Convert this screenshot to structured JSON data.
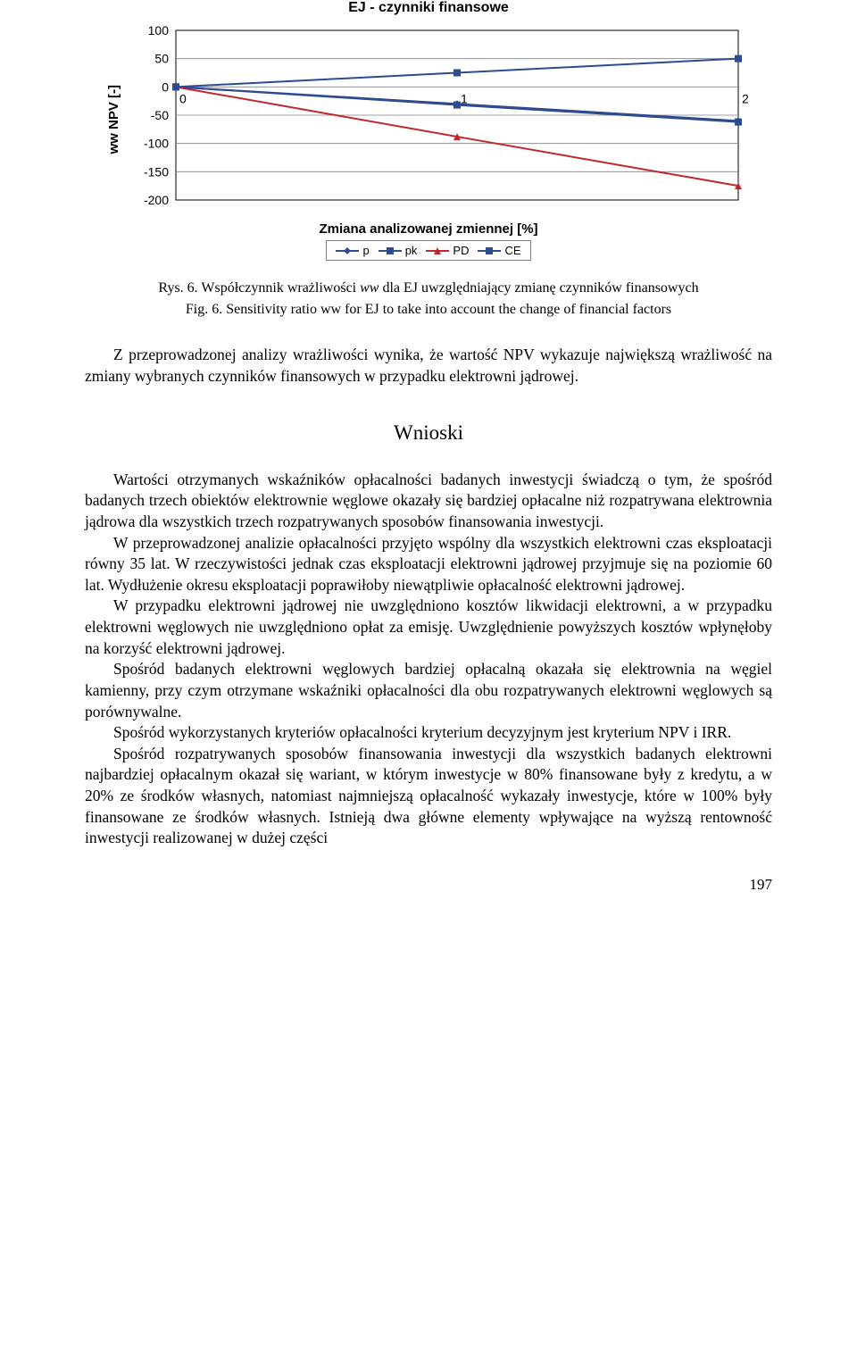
{
  "chart": {
    "type": "line",
    "title": "EJ - czynniki finansowe",
    "title_fontsize": 16,
    "title_weight": "bold",
    "ylabel": "ww NPV [-]",
    "xlabel": "Zmiana analizowanej zmiennej [%]",
    "label_fontsize": 15,
    "label_weight": "bold",
    "background_color": "#ffffff",
    "border_color": "#000000",
    "grid_color": "#808080",
    "xlim": [
      0,
      2
    ],
    "ylim": [
      -200,
      100
    ],
    "yticks": [
      -200,
      -150,
      -100,
      -50,
      0,
      50,
      100
    ],
    "xticks": [
      0,
      1,
      2
    ],
    "tick_fontsize": 14,
    "x_axis_at_y": 0,
    "series": [
      {
        "name": "p",
        "color": "#2e4b8f",
        "marker": "diamond",
        "values": [
          [
            0,
            0
          ],
          [
            1,
            -30
          ],
          [
            2,
            -60
          ]
        ]
      },
      {
        "name": "pk",
        "color": "#2e4b8f",
        "marker": "square",
        "values": [
          [
            0,
            0
          ],
          [
            1,
            -32
          ],
          [
            2,
            -62
          ]
        ]
      },
      {
        "name": "PD",
        "color": "#c0272d",
        "marker": "triangle",
        "values": [
          [
            0,
            0
          ],
          [
            1,
            -88
          ],
          [
            2,
            -175
          ]
        ]
      },
      {
        "name": "CE",
        "color": "#2e4b8f",
        "marker": "square",
        "values": [
          [
            0,
            0
          ],
          [
            1,
            25
          ],
          [
            2,
            50
          ]
        ]
      }
    ],
    "line_width": 2,
    "marker_size": 8,
    "legend_border": "#7f7f7f"
  },
  "caption1_a": "Rys. 6. Współczynnik wrażliwości ",
  "caption1_it": "ww",
  "caption1_b": " dla EJ uwzględniający zmianę czynników finansowych",
  "caption2_a": "Fig. 6. Sensitivity ratio ",
  "caption2_it": "ww",
  "caption2_b": " for EJ to take into account the change of financial factors",
  "lead": "Z przeprowadzonej analizy wrażliwości wynika, że wartość NPV wykazuje największą wrażliwość na zmiany wybranych czynników finansowych w przypadku elektrowni jądrowej.",
  "heading": "Wnioski",
  "paragraphs": [
    "Wartości otrzymanych wskaźników opłacalności badanych inwestycji świadczą o tym, że spośród badanych trzech obiektów elektrownie węglowe okazały się bardziej opłacalne niż rozpatrywana elektrownia jądrowa dla wszystkich trzech rozpatrywanych sposobów finansowania inwestycji.",
    "W przeprowadzonej analizie opłacalności przyjęto wspólny dla wszystkich elektrowni czas eksploatacji równy 35 lat. W rzeczywistości jednak czas eksploatacji elektrowni jądrowej przyjmuje się na poziomie 60 lat. Wydłużenie okresu eksploatacji poprawiłoby niewątpliwie opłacalność elektrowni jądrowej.",
    "W przypadku elektrowni jądrowej nie uwzględniono kosztów likwidacji elektrowni, a w przypadku elektrowni węglowych nie uwzględniono opłat za emisję. Uwzględnienie powyższych kosztów wpłynęłoby na korzyść elektrowni jądrowej.",
    "Spośród badanych elektrowni węglowych bardziej opłacalną okazała się elektrownia na węgiel kamienny, przy czym otrzymane wskaźniki opłacalności dla obu rozpatrywanych elektrowni węglowych są porównywalne.",
    "Spośród wykorzystanych kryteriów opłacalności kryterium decyzyjnym jest kryterium NPV i IRR.",
    "Spośród rozpatrywanych sposobów finansowania inwestycji dla wszystkich badanych elektrowni najbardziej opłacalnym okazał się wariant, w którym inwestycje w 80% finansowane były z kredytu, a w 20% ze środków własnych, natomiast najmniejszą opłacalność wykazały inwestycje, które w 100% były finansowane ze środków własnych. Istnieją dwa główne elementy wpływające na wyższą rentowność inwestycji realizowanej w dużej części"
  ],
  "page_number": "197"
}
